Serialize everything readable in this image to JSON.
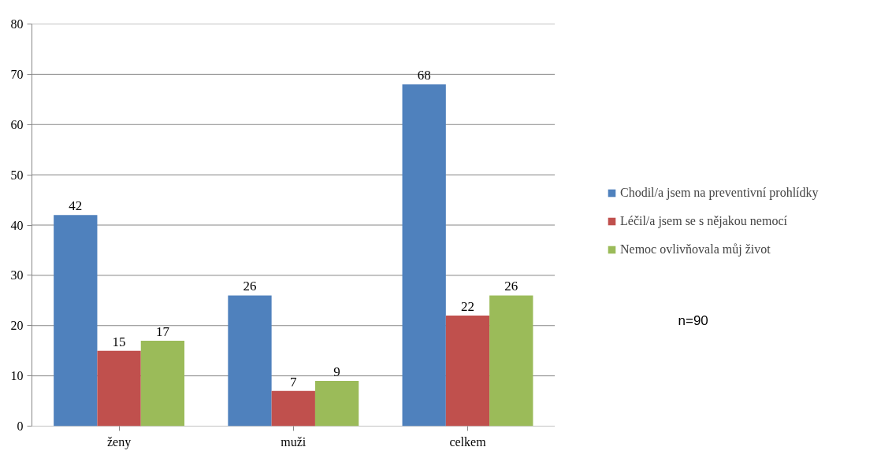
{
  "chart_data": {
    "type": "bar",
    "categories": [
      "ženy",
      "muži",
      "celkem"
    ],
    "series": [
      {
        "name": "Chodil/a jsem na preventivní prohlídky",
        "color": "#4f81bd",
        "values": [
          42,
          26,
          68
        ]
      },
      {
        "name": "Léčil/a jsem se s nějakou nemocí",
        "color": "#c0504d",
        "values": [
          15,
          7,
          22
        ]
      },
      {
        "name": "Nemoc ovlivňovala můj život",
        "color": "#9bbb59",
        "values": [
          17,
          9,
          26
        ]
      }
    ],
    "ylim": [
      0,
      80
    ],
    "yticks": [
      0,
      10,
      20,
      30,
      40,
      50,
      60,
      70,
      80
    ],
    "grid": "y",
    "legend": "right",
    "data_labels": true,
    "annotations": [
      "n=90"
    ]
  }
}
